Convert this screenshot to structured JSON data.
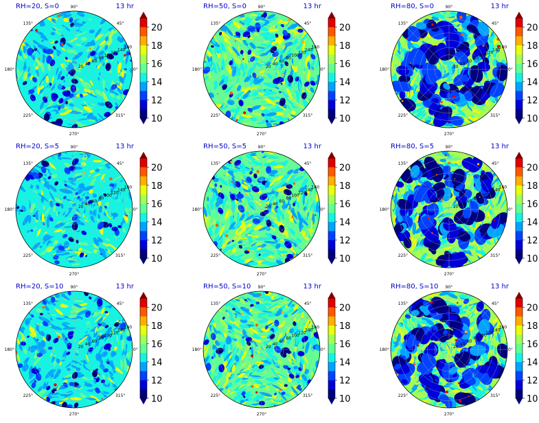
{
  "figure": {
    "angle_ticks": [
      "0°",
      "45°",
      "90°",
      "135°",
      "180°",
      "225°",
      "270°",
      "315°"
    ],
    "radial_ticks": [
      "20",
      "40",
      "60",
      "80",
      "100",
      "120",
      "140",
      "160"
    ],
    "colorbar": {
      "min": 10,
      "max": 21,
      "ticks": [
        "10",
        "12",
        "14",
        "16",
        "18",
        "20"
      ],
      "levels": [
        10,
        11,
        12,
        13,
        14,
        15,
        16,
        17,
        18,
        19,
        20,
        21
      ],
      "colors": [
        "#00007f",
        "#0000d8",
        "#0042ff",
        "#00a4ff",
        "#14f4e3",
        "#62ff94",
        "#a4ff53",
        "#eaff0c",
        "#ffb000",
        "#ff5900",
        "#e00000",
        "#7f0000"
      ],
      "under_color": "#00007f",
      "over_color": "#7f0000",
      "extend": "both"
    },
    "title_color": "#0000cc"
  },
  "chart_data": [
    {
      "type": "heatmap",
      "title": "RH=20, S=0",
      "time_label": "13 hr",
      "rh": 20,
      "s": 0,
      "projection": "polar",
      "r_max": 160,
      "dominant_level": 14.5,
      "low_patch_fraction": 0.06,
      "high_patch_fraction": 0.2
    },
    {
      "type": "heatmap",
      "title": "RH=50, S=0",
      "time_label": "13 hr",
      "rh": 50,
      "s": 0,
      "projection": "polar",
      "r_max": 160,
      "dominant_level": 15.5,
      "low_patch_fraction": 0.03,
      "high_patch_fraction": 0.4
    },
    {
      "type": "heatmap",
      "title": "RH=80, S=0",
      "time_label": "13 hr",
      "rh": 80,
      "s": 0,
      "projection": "polar",
      "r_max": 160,
      "dominant_level": 16.5,
      "low_patch_fraction": 0.3,
      "high_patch_fraction": 0.45
    },
    {
      "type": "heatmap",
      "title": "RH=20, S=5",
      "time_label": "13 hr",
      "rh": 20,
      "s": 5,
      "projection": "polar",
      "r_max": 160,
      "dominant_level": 14.5,
      "low_patch_fraction": 0.05,
      "high_patch_fraction": 0.15
    },
    {
      "type": "heatmap",
      "title": "RH=50, S=5",
      "time_label": "13 hr",
      "rh": 50,
      "s": 5,
      "projection": "polar",
      "r_max": 160,
      "dominant_level": 15.5,
      "low_patch_fraction": 0.03,
      "high_patch_fraction": 0.4
    },
    {
      "type": "heatmap",
      "title": "RH=80, S=5",
      "time_label": "13 hr",
      "rh": 80,
      "s": 5,
      "projection": "polar",
      "r_max": 160,
      "dominant_level": 16.5,
      "low_patch_fraction": 0.32,
      "high_patch_fraction": 0.45
    },
    {
      "type": "heatmap",
      "title": "RH=20, S=10",
      "time_label": "13 hr",
      "rh": 20,
      "s": 10,
      "projection": "polar",
      "r_max": 160,
      "dominant_level": 14.5,
      "low_patch_fraction": 0.08,
      "high_patch_fraction": 0.15
    },
    {
      "type": "heatmap",
      "title": "RH=50, S=10",
      "time_label": "13 hr",
      "rh": 50,
      "s": 10,
      "projection": "polar",
      "r_max": 160,
      "dominant_level": 15.5,
      "low_patch_fraction": 0.03,
      "high_patch_fraction": 0.4
    },
    {
      "type": "heatmap",
      "title": "RH=80, S=10",
      "time_label": "13 hr",
      "rh": 80,
      "s": 10,
      "projection": "polar",
      "r_max": 160,
      "dominant_level": 16.5,
      "low_patch_fraction": 0.32,
      "high_patch_fraction": 0.45
    }
  ]
}
